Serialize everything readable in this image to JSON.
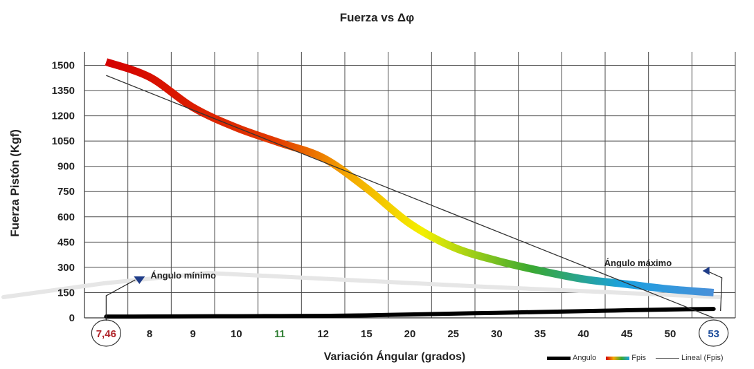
{
  "title": "Fuerza vs Δφ",
  "chart_data": {
    "type": "line",
    "title": "Fuerza vs Δφ",
    "xlabel": "Variación Ángular (grados)",
    "ylabel": "Fuerza Pistón (Kgf)",
    "categories": [
      "7,46",
      "8",
      "9",
      "10",
      "11",
      "12",
      "15",
      "20",
      "25",
      "30",
      "35",
      "40",
      "45",
      "50",
      "53"
    ],
    "yticks": [
      0,
      150,
      300,
      450,
      600,
      750,
      900,
      1050,
      1200,
      1350,
      1500
    ],
    "ylim": [
      0,
      1580
    ],
    "grid": true,
    "legend_position": "bottom-right",
    "series": [
      {
        "name": "Angulo",
        "color": "#000000",
        "values": [
          7.46,
          8,
          9,
          10,
          11,
          12,
          15,
          20,
          25,
          30,
          35,
          40,
          45,
          50,
          53
        ]
      },
      {
        "name": "Fpis",
        "color_gradient": [
          "#d40000",
          "#e23a00",
          "#f4a800",
          "#f4ef00",
          "#3aa832",
          "#1aa0e0",
          "#4a90d9"
        ],
        "values": [
          1520,
          1430,
          1250,
          1130,
          1040,
          950,
          770,
          560,
          420,
          340,
          280,
          230,
          200,
          170,
          150
        ]
      },
      {
        "name": "Lineal (Fpis)",
        "color": "#333333",
        "values": [
          1440,
          1345,
          1230,
          1120,
          1020,
          915,
          810,
          700,
          595,
          490,
          380,
          275,
          165,
          55,
          -5
        ]
      }
    ],
    "annotations": [
      {
        "text": "Ángulo mínimo",
        "target_category": "7,46"
      },
      {
        "text": "Ángulo máximo",
        "target_category": "53"
      }
    ],
    "highlighted_ticks": [
      {
        "label": "7,46",
        "color": "#b0242a",
        "circled": true
      },
      {
        "label": "11",
        "color": "#2e7d32",
        "circled": false
      },
      {
        "label": "53",
        "color": "#1f4e9c",
        "circled": true
      }
    ]
  },
  "legend": {
    "angulo": "Angulo",
    "fpis": "Fpis",
    "lineal": "Lineal (Fpis)"
  }
}
